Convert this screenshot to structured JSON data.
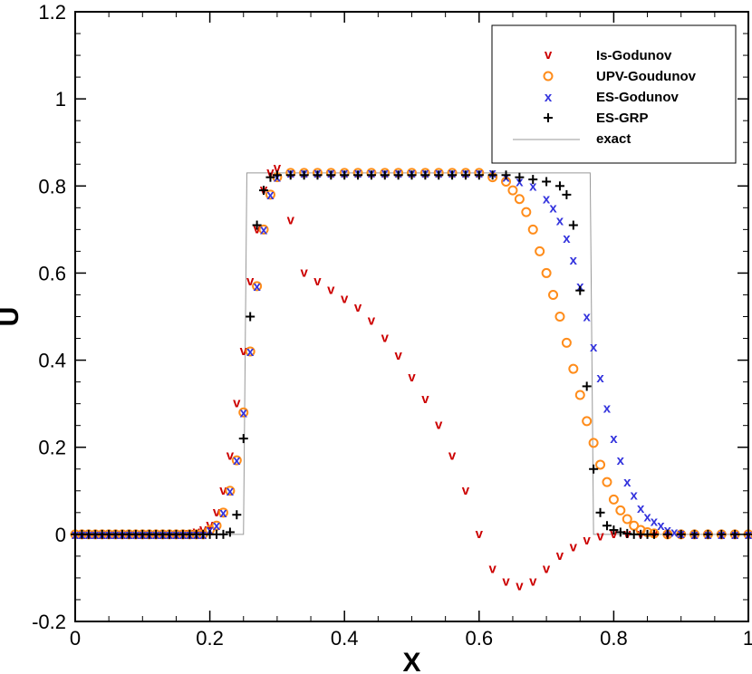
{
  "chart_data": {
    "type": "scatter",
    "title": "",
    "xlabel": "X",
    "ylabel": "U",
    "xlim": [
      0,
      1
    ],
    "ylim": [
      -0.2,
      1.2
    ],
    "x_ticks": [
      0,
      0.2,
      0.4,
      0.6,
      0.8,
      1
    ],
    "x_tick_labels": [
      "0",
      "0.2",
      "0.4",
      "0.6",
      "0.8",
      "1"
    ],
    "y_ticks": [
      -0.2,
      0,
      0.2,
      0.4,
      0.6,
      0.8,
      1,
      1.2
    ],
    "y_tick_labels": [
      "-0.2",
      "0",
      "0.2",
      "0.4",
      "0.6",
      "0.8",
      "1",
      "1.2"
    ],
    "grid": false,
    "legend_position": "top-right",
    "series": [
      {
        "name": "Is-Godunov",
        "marker": "v",
        "color": "#cc0000",
        "x": [
          0.0,
          0.01,
          0.02,
          0.03,
          0.04,
          0.05,
          0.06,
          0.07,
          0.08,
          0.09,
          0.1,
          0.11,
          0.12,
          0.13,
          0.14,
          0.15,
          0.16,
          0.17,
          0.18,
          0.19,
          0.2,
          0.21,
          0.22,
          0.23,
          0.24,
          0.25,
          0.26,
          0.27,
          0.28,
          0.29,
          0.3,
          0.32,
          0.34,
          0.36,
          0.38,
          0.4,
          0.42,
          0.44,
          0.46,
          0.48,
          0.5,
          0.52,
          0.54,
          0.56,
          0.58,
          0.6,
          0.62,
          0.64,
          0.66,
          0.68,
          0.7,
          0.72,
          0.74,
          0.76,
          0.78,
          0.8,
          0.82,
          0.84,
          0.86,
          0.88,
          0.9,
          0.92,
          0.94,
          0.96,
          0.98,
          1.0
        ],
        "y": [
          0.0,
          0.0,
          0.0,
          0.0,
          0.0,
          0.0,
          0.0,
          0.0,
          0.0,
          0.0,
          0.0,
          0.0,
          0.0,
          0.0,
          0.0,
          0.0,
          0.001,
          0.002,
          0.005,
          0.01,
          0.02,
          0.05,
          0.1,
          0.18,
          0.3,
          0.42,
          0.58,
          0.7,
          0.79,
          0.83,
          0.84,
          0.72,
          0.6,
          0.58,
          0.56,
          0.54,
          0.52,
          0.49,
          0.45,
          0.41,
          0.36,
          0.31,
          0.25,
          0.18,
          0.1,
          0.0,
          -0.08,
          -0.11,
          -0.12,
          -0.11,
          -0.08,
          -0.05,
          -0.03,
          -0.015,
          -0.005,
          0.0,
          0.0,
          0.0,
          0.0,
          0.0,
          0.0,
          0.0,
          0.0,
          0.0,
          0.0,
          0.0
        ]
      },
      {
        "name": "UPV-Goudunov",
        "marker": "o",
        "color": "#ff8c1a",
        "x": [
          0.0,
          0.01,
          0.02,
          0.03,
          0.04,
          0.05,
          0.06,
          0.07,
          0.08,
          0.09,
          0.1,
          0.11,
          0.12,
          0.13,
          0.14,
          0.15,
          0.16,
          0.17,
          0.18,
          0.19,
          0.2,
          0.21,
          0.22,
          0.23,
          0.24,
          0.25,
          0.26,
          0.27,
          0.28,
          0.29,
          0.3,
          0.32,
          0.34,
          0.36,
          0.38,
          0.4,
          0.42,
          0.44,
          0.46,
          0.48,
          0.5,
          0.52,
          0.54,
          0.56,
          0.58,
          0.6,
          0.62,
          0.64,
          0.65,
          0.66,
          0.67,
          0.68,
          0.69,
          0.7,
          0.71,
          0.72,
          0.73,
          0.74,
          0.75,
          0.76,
          0.77,
          0.78,
          0.79,
          0.8,
          0.81,
          0.82,
          0.83,
          0.84,
          0.85,
          0.86,
          0.88,
          0.9,
          0.92,
          0.94,
          0.96,
          0.98,
          1.0
        ],
        "y": [
          0.0,
          0.0,
          0.0,
          0.0,
          0.0,
          0.0,
          0.0,
          0.0,
          0.0,
          0.0,
          0.0,
          0.0,
          0.0,
          0.0,
          0.0,
          0.0,
          0.0,
          0.0,
          0.0,
          0.0,
          0.01,
          0.02,
          0.05,
          0.1,
          0.17,
          0.28,
          0.42,
          0.57,
          0.7,
          0.78,
          0.82,
          0.83,
          0.83,
          0.83,
          0.83,
          0.83,
          0.83,
          0.83,
          0.83,
          0.83,
          0.83,
          0.83,
          0.83,
          0.83,
          0.83,
          0.83,
          0.82,
          0.81,
          0.79,
          0.77,
          0.74,
          0.7,
          0.65,
          0.6,
          0.55,
          0.5,
          0.44,
          0.38,
          0.32,
          0.26,
          0.21,
          0.16,
          0.12,
          0.08,
          0.055,
          0.035,
          0.02,
          0.01,
          0.005,
          0.002,
          0.0,
          0.0,
          0.0,
          0.0,
          0.0,
          0.0,
          0.0
        ]
      },
      {
        "name": "ES-Godunov",
        "marker": "x",
        "color": "#3333dd",
        "x": [
          0.0,
          0.01,
          0.02,
          0.03,
          0.04,
          0.05,
          0.06,
          0.07,
          0.08,
          0.09,
          0.1,
          0.11,
          0.12,
          0.13,
          0.14,
          0.15,
          0.16,
          0.17,
          0.18,
          0.19,
          0.2,
          0.21,
          0.22,
          0.23,
          0.24,
          0.25,
          0.26,
          0.27,
          0.28,
          0.29,
          0.3,
          0.32,
          0.34,
          0.36,
          0.38,
          0.4,
          0.42,
          0.44,
          0.46,
          0.48,
          0.5,
          0.52,
          0.54,
          0.56,
          0.58,
          0.6,
          0.62,
          0.64,
          0.66,
          0.68,
          0.7,
          0.71,
          0.72,
          0.73,
          0.74,
          0.75,
          0.76,
          0.77,
          0.78,
          0.79,
          0.8,
          0.81,
          0.82,
          0.83,
          0.84,
          0.85,
          0.86,
          0.87,
          0.88,
          0.89,
          0.9,
          0.92,
          0.94,
          0.96,
          0.98,
          1.0
        ],
        "y": [
          0.0,
          0.0,
          0.0,
          0.0,
          0.0,
          0.0,
          0.0,
          0.0,
          0.0,
          0.0,
          0.0,
          0.0,
          0.0,
          0.0,
          0.0,
          0.0,
          0.0,
          0.0,
          0.0,
          0.0,
          0.01,
          0.02,
          0.05,
          0.1,
          0.17,
          0.28,
          0.42,
          0.57,
          0.7,
          0.78,
          0.82,
          0.83,
          0.83,
          0.83,
          0.83,
          0.83,
          0.83,
          0.83,
          0.83,
          0.83,
          0.83,
          0.83,
          0.83,
          0.83,
          0.83,
          0.83,
          0.83,
          0.82,
          0.81,
          0.8,
          0.77,
          0.75,
          0.72,
          0.68,
          0.63,
          0.57,
          0.5,
          0.43,
          0.36,
          0.29,
          0.22,
          0.17,
          0.12,
          0.09,
          0.06,
          0.04,
          0.03,
          0.02,
          0.01,
          0.005,
          0.002,
          0.0,
          0.0,
          0.0,
          0.0,
          0.0
        ]
      },
      {
        "name": "ES-GRP",
        "marker": "+",
        "color": "#000000",
        "x": [
          0.0,
          0.01,
          0.02,
          0.03,
          0.04,
          0.05,
          0.06,
          0.07,
          0.08,
          0.09,
          0.1,
          0.11,
          0.12,
          0.13,
          0.14,
          0.15,
          0.16,
          0.17,
          0.18,
          0.19,
          0.2,
          0.21,
          0.22,
          0.23,
          0.24,
          0.25,
          0.26,
          0.27,
          0.28,
          0.29,
          0.3,
          0.32,
          0.34,
          0.36,
          0.38,
          0.4,
          0.42,
          0.44,
          0.46,
          0.48,
          0.5,
          0.52,
          0.54,
          0.56,
          0.58,
          0.6,
          0.62,
          0.64,
          0.66,
          0.68,
          0.7,
          0.72,
          0.73,
          0.74,
          0.75,
          0.76,
          0.77,
          0.78,
          0.79,
          0.8,
          0.81,
          0.82,
          0.83,
          0.84,
          0.85,
          0.86,
          0.88,
          0.9,
          0.92,
          0.94,
          0.96,
          0.98,
          1.0
        ],
        "y": [
          0.0,
          0.0,
          0.0,
          0.0,
          0.0,
          0.0,
          0.0,
          0.0,
          0.0,
          0.0,
          0.0,
          0.0,
          0.0,
          0.0,
          0.0,
          0.0,
          0.0,
          0.0,
          0.0,
          0.0,
          0.0,
          0.0,
          0.0,
          0.005,
          0.045,
          0.22,
          0.5,
          0.71,
          0.79,
          0.82,
          0.825,
          0.825,
          0.825,
          0.825,
          0.825,
          0.825,
          0.825,
          0.825,
          0.825,
          0.825,
          0.825,
          0.825,
          0.825,
          0.825,
          0.825,
          0.825,
          0.825,
          0.825,
          0.82,
          0.815,
          0.81,
          0.8,
          0.78,
          0.71,
          0.56,
          0.34,
          0.15,
          0.05,
          0.02,
          0.01,
          0.005,
          0.002,
          0.0,
          0.0,
          0.0,
          0.0,
          0.0,
          0.0,
          0.0,
          0.0,
          0.0,
          0.0,
          0.0
        ]
      },
      {
        "name": "exact",
        "marker": "line",
        "color": "#999999",
        "x": [
          0.0,
          0.25,
          0.255,
          0.765,
          0.77,
          1.0
        ],
        "y": [
          0.0,
          0.0,
          0.83,
          0.83,
          0.0,
          0.0
        ]
      }
    ]
  }
}
